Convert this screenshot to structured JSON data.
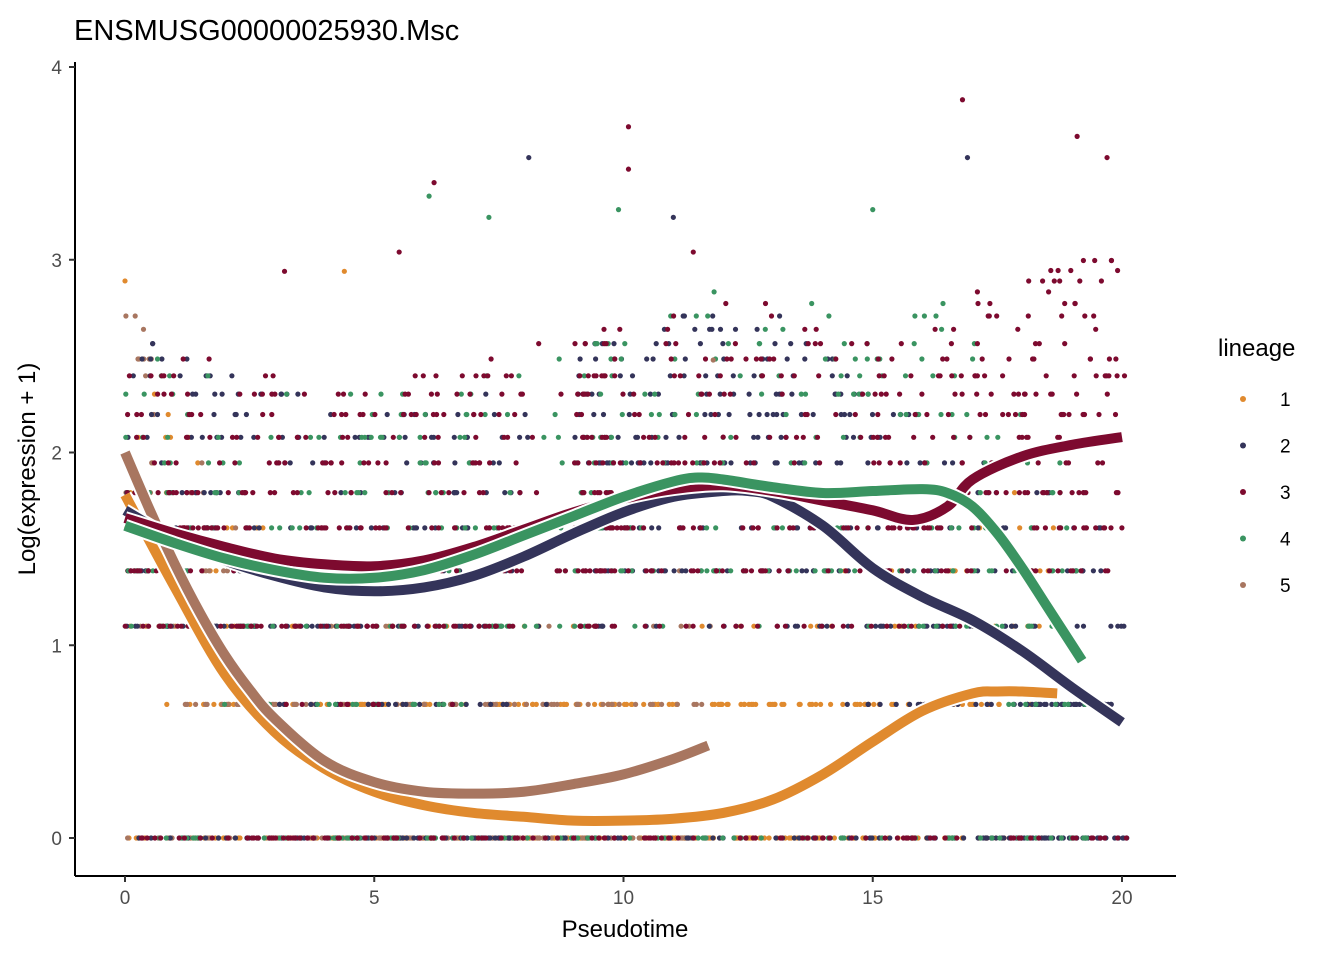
{
  "chart_data": {
    "type": "scatter",
    "title": "ENSMUSG00000025930.Msc",
    "xlabel": "Pseudotime",
    "ylabel": "Log(expression + 1)",
    "xlim": [
      -1,
      21
    ],
    "ylim": [
      -0.2,
      4
    ],
    "x_ticks": [
      0,
      5,
      10,
      15,
      20
    ],
    "x_tick_labels": [
      "0",
      "5",
      "10",
      "15",
      "20"
    ],
    "y_ticks": [
      0,
      1,
      2,
      3,
      4
    ],
    "y_tick_labels": [
      "0",
      "1",
      "2",
      "3",
      "4"
    ],
    "grid": false,
    "legend": {
      "title": "lineage",
      "position": "right",
      "entries": [
        {
          "label": "1",
          "color": "#e08a2e"
        },
        {
          "label": "2",
          "color": "#34345a"
        },
        {
          "label": "3",
          "color": "#7d0a2f"
        },
        {
          "label": "4",
          "color": "#3a9461"
        },
        {
          "label": "5",
          "color": "#a87660"
        }
      ]
    },
    "expression_levels": [
      0,
      0.693,
      1.099,
      1.386,
      1.609,
      1.792,
      1.946,
      2.079,
      2.197,
      2.303,
      2.398,
      2.485,
      2.565,
      2.639,
      2.708,
      2.773,
      2.833,
      2.89,
      2.944,
      2.996,
      3.045,
      3.091,
      3.135,
      3.178,
      3.219,
      3.258,
      3.296,
      3.332,
      3.367,
      3.401,
      3.466,
      3.526,
      3.638,
      3.689,
      3.829
    ],
    "lineage_ranges": [
      {
        "lineage": "1",
        "x_range": [
          0,
          18.7
        ]
      },
      {
        "lineage": "2",
        "x_range": [
          0,
          20.1
        ]
      },
      {
        "lineage": "3",
        "x_range": [
          0,
          20.1
        ]
      },
      {
        "lineage": "4",
        "x_range": [
          0,
          19.3
        ]
      },
      {
        "lineage": "5",
        "x_range": [
          0,
          11.8
        ]
      }
    ],
    "outlier_points": [
      {
        "x": 0.0,
        "y": 2.89,
        "lineage": "1"
      },
      {
        "x": 4.4,
        "y": 2.94,
        "lineage": "1"
      },
      {
        "x": 3.2,
        "y": 2.94,
        "lineage": "3"
      },
      {
        "x": 6.2,
        "y": 3.4,
        "lineage": "3"
      },
      {
        "x": 6.1,
        "y": 3.33,
        "lineage": "4"
      },
      {
        "x": 8.1,
        "y": 3.53,
        "lineage": "2"
      },
      {
        "x": 10.1,
        "y": 3.69,
        "lineage": "3"
      },
      {
        "x": 10.1,
        "y": 3.47,
        "lineage": "3"
      },
      {
        "x": 9.9,
        "y": 3.26,
        "lineage": "4"
      },
      {
        "x": 11.0,
        "y": 3.22,
        "lineage": "2"
      },
      {
        "x": 7.3,
        "y": 3.22,
        "lineage": "4"
      },
      {
        "x": 16.8,
        "y": 3.83,
        "lineage": "3"
      },
      {
        "x": 16.9,
        "y": 3.53,
        "lineage": "2"
      },
      {
        "x": 19.1,
        "y": 3.64,
        "lineage": "3"
      },
      {
        "x": 19.7,
        "y": 3.53,
        "lineage": "3"
      },
      {
        "x": 15.0,
        "y": 3.26,
        "lineage": "4"
      },
      {
        "x": 5.5,
        "y": 3.04,
        "lineage": "3"
      },
      {
        "x": 11.4,
        "y": 3.04,
        "lineage": "3"
      },
      {
        "x": 11.8,
        "y": 2.48,
        "lineage": "5"
      },
      {
        "x": 12.0,
        "y": 2.08,
        "lineage": "3"
      }
    ],
    "series": [
      {
        "name": "1",
        "color": "#e08a2e",
        "x": [
          0,
          1,
          2,
          3,
          4,
          5,
          6,
          7,
          8,
          9,
          10,
          11,
          12,
          13,
          14,
          15,
          16,
          17,
          17.5,
          18,
          18.7
        ],
        "y": [
          1.78,
          1.3,
          0.85,
          0.55,
          0.36,
          0.24,
          0.17,
          0.13,
          0.11,
          0.09,
          0.09,
          0.1,
          0.13,
          0.2,
          0.33,
          0.5,
          0.66,
          0.75,
          0.76,
          0.76,
          0.75
        ]
      },
      {
        "name": "2",
        "color": "#34345a",
        "x": [
          0,
          1,
          2,
          3,
          4,
          5,
          6,
          7,
          8,
          9,
          10,
          11,
          12,
          12.5,
          13,
          14,
          15,
          16,
          17,
          18,
          19,
          20
        ],
        "y": [
          1.7,
          1.55,
          1.44,
          1.36,
          1.3,
          1.28,
          1.3,
          1.36,
          1.46,
          1.58,
          1.69,
          1.77,
          1.8,
          1.8,
          1.77,
          1.62,
          1.4,
          1.25,
          1.13,
          0.97,
          0.78,
          0.6
        ]
      },
      {
        "name": "3",
        "color": "#7d0a2f",
        "x": [
          0,
          1,
          2,
          3,
          4,
          5,
          6,
          7,
          8,
          9,
          10,
          11,
          12,
          13,
          14,
          15,
          15.8,
          16.5,
          17,
          18,
          19,
          20
        ],
        "y": [
          1.66,
          1.58,
          1.51,
          1.45,
          1.42,
          1.41,
          1.44,
          1.51,
          1.6,
          1.69,
          1.76,
          1.81,
          1.83,
          1.8,
          1.75,
          1.7,
          1.65,
          1.72,
          1.86,
          1.98,
          2.04,
          2.08
        ]
      },
      {
        "name": "4",
        "color": "#3a9461",
        "x": [
          0,
          1,
          2,
          3,
          4,
          5,
          6,
          7,
          8,
          9,
          10,
          11,
          11.5,
          12,
          13,
          14,
          15,
          16,
          16.5,
          17,
          17.5,
          18,
          18.5,
          19.2
        ],
        "y": [
          1.62,
          1.53,
          1.45,
          1.39,
          1.35,
          1.35,
          1.39,
          1.47,
          1.57,
          1.67,
          1.77,
          1.85,
          1.87,
          1.86,
          1.82,
          1.79,
          1.8,
          1.81,
          1.79,
          1.72,
          1.58,
          1.4,
          1.2,
          0.92
        ]
      },
      {
        "name": "5",
        "color": "#a87660",
        "x": [
          0,
          0.5,
          1,
          1.5,
          2,
          2.5,
          3,
          4,
          5,
          6,
          7,
          8,
          9,
          10,
          11,
          11.7
        ],
        "y": [
          2.0,
          1.7,
          1.42,
          1.17,
          0.95,
          0.77,
          0.62,
          0.4,
          0.29,
          0.24,
          0.23,
          0.24,
          0.28,
          0.33,
          0.41,
          0.48
        ]
      }
    ]
  }
}
